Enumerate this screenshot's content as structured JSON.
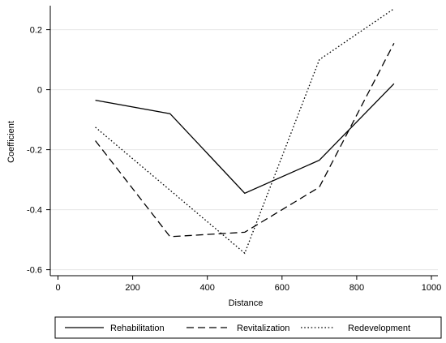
{
  "chart_data": {
    "type": "line",
    "title": "",
    "xlabel": "Distance",
    "ylabel": "Coefficient",
    "x": [
      100,
      300,
      500,
      700,
      900
    ],
    "xlim": [
      0,
      1000
    ],
    "ylim": [
      -0.62,
      0.28
    ],
    "x_ticks": [
      0,
      200,
      400,
      600,
      800,
      1000
    ],
    "y_ticks": [
      0.2,
      0,
      -0.2,
      -0.4,
      -0.6
    ],
    "y_tick_labels": [
      "0.2",
      "0",
      "-0.2",
      "-0.4",
      "-0.6"
    ],
    "grid": "horizontal",
    "legend_position": "bottom",
    "series": [
      {
        "name": "Rehabilitation",
        "values": [
          -0.035,
          -0.08,
          -0.345,
          -0.235,
          0.02
        ],
        "dash": "solid"
      },
      {
        "name": "Revitalization",
        "values": [
          -0.17,
          -0.49,
          -0.475,
          -0.325,
          0.155
        ],
        "dash": "dashed"
      },
      {
        "name": "Redevelopment",
        "values": [
          -0.125,
          -0.335,
          -0.545,
          0.1,
          0.27
        ],
        "dash": "dotted"
      }
    ]
  }
}
